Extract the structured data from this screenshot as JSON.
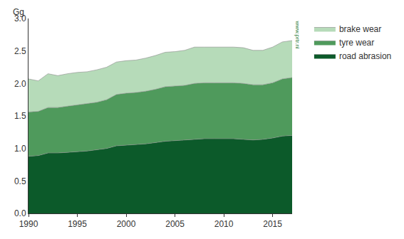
{
  "chart_data": {
    "type": "area",
    "y_label": "Gg",
    "annotations": [
      "www.prtr.nl"
    ],
    "x": [
      1990,
      1991,
      1992,
      1993,
      1994,
      1995,
      1996,
      1997,
      1998,
      1999,
      2000,
      2001,
      2002,
      2003,
      2004,
      2005,
      2006,
      2007,
      2008,
      2009,
      2010,
      2011,
      2012,
      2013,
      2014,
      2015,
      2016,
      2017
    ],
    "series": [
      {
        "name": "road abrasion",
        "color": "#0c5a2a",
        "values": [
          0.88,
          0.89,
          0.93,
          0.93,
          0.94,
          0.95,
          0.96,
          0.98,
          1.0,
          1.04,
          1.05,
          1.06,
          1.07,
          1.09,
          1.11,
          1.12,
          1.13,
          1.14,
          1.15,
          1.15,
          1.15,
          1.15,
          1.14,
          1.13,
          1.14,
          1.16,
          1.19,
          1.2
        ]
      },
      {
        "name": "tyre wear",
        "color": "#4f9a5c",
        "values": [
          0.68,
          0.68,
          0.7,
          0.7,
          0.71,
          0.72,
          0.73,
          0.73,
          0.75,
          0.79,
          0.8,
          0.8,
          0.81,
          0.82,
          0.84,
          0.84,
          0.84,
          0.86,
          0.86,
          0.86,
          0.86,
          0.86,
          0.86,
          0.85,
          0.84,
          0.85,
          0.88,
          0.89
        ]
      },
      {
        "name": "brake wear",
        "color": "#b6dbb9",
        "values": [
          0.51,
          0.47,
          0.52,
          0.49,
          0.5,
          0.5,
          0.49,
          0.5,
          0.5,
          0.5,
          0.5,
          0.5,
          0.51,
          0.52,
          0.53,
          0.53,
          0.54,
          0.56,
          0.55,
          0.55,
          0.55,
          0.55,
          0.55,
          0.53,
          0.53,
          0.55,
          0.57,
          0.57
        ]
      }
    ],
    "xlim": [
      1990,
      2017
    ],
    "xticks": [
      1990,
      1995,
      2000,
      2005,
      2010,
      2015
    ],
    "ylim": [
      0,
      3
    ],
    "yticks": [
      {
        "value": 0,
        "label": "0.0"
      },
      {
        "value": 0.5,
        "label": "0.5"
      },
      {
        "value": 1,
        "label": "1.0"
      },
      {
        "value": 1.5,
        "label": "1.5"
      },
      {
        "value": 2,
        "label": "2.0"
      },
      {
        "value": 2.5,
        "label": "2.5"
      },
      {
        "value": 3,
        "label": "3.0"
      }
    ],
    "stacked": true,
    "grid": false,
    "legend": "right"
  }
}
